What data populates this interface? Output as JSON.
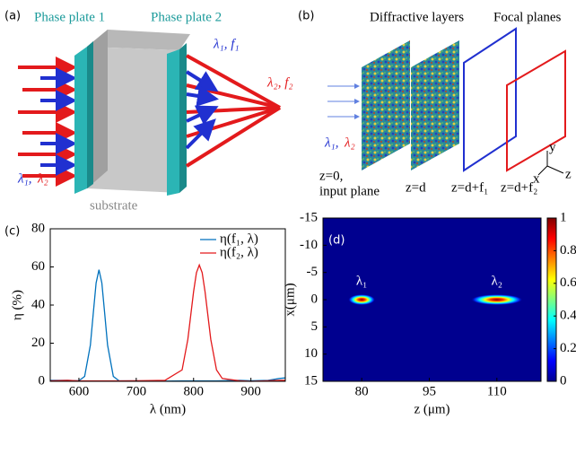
{
  "panel_a": {
    "label": "(a)",
    "plate1": "Phase plate 1",
    "plate2": "Phase plate 2",
    "out1": "λ₁, f₁",
    "out2": "λ₂, f₂",
    "in1": "λ₁,",
    "in2": "λ₂",
    "substrate": "substrate"
  },
  "panel_b": {
    "label": "(b)",
    "layers": "Diffractive layers",
    "planes": "Focal planes",
    "z0": "z=0,",
    "input": "input plane",
    "zd": "z=d",
    "zf1": "z=d+f₁",
    "zf2": "z=d+f₂",
    "in1": "λ₁,",
    "in2": "λ₂",
    "ax_x": "x",
    "ax_y": "y",
    "ax_z": "z"
  },
  "chart_data": [
    {
      "type": "line",
      "panel": "(c)",
      "xlabel": "λ (nm)",
      "ylabel": "η (%)",
      "x": [
        550,
        580,
        600,
        610,
        620,
        625,
        630,
        635,
        640,
        645,
        650,
        660,
        670,
        700,
        750,
        780,
        790,
        800,
        805,
        810,
        815,
        820,
        830,
        840,
        850,
        880,
        900,
        930,
        950,
        960
      ],
      "series": [
        {
          "name": "η(f₁, λ)",
          "color": "#0072bd",
          "values": [
            0.5,
            0.5,
            0.3,
            2.6,
            19,
            35.5,
            51.6,
            58.5,
            51.6,
            35.5,
            19,
            2.6,
            0.3,
            0.2,
            0.1,
            0.2,
            0.2,
            0.2,
            0.2,
            0.2,
            0.2,
            0.2,
            0.2,
            0.2,
            0.3,
            0.5,
            0.3,
            0.5,
            1.5,
            1.8
          ]
        },
        {
          "name": "η(f₂, λ)",
          "color": "#e31a1c",
          "values": [
            0.2,
            0.5,
            0.2,
            0.2,
            0.2,
            0.2,
            0.2,
            0.2,
            0.2,
            0.2,
            0.2,
            0.2,
            0.2,
            0.3,
            0.5,
            6,
            22,
            47,
            57,
            61,
            57,
            47,
            22,
            6,
            1.5,
            0.3,
            0,
            0.3,
            0.5,
            0.5
          ]
        }
      ],
      "xlim": [
        550,
        960
      ],
      "ylim": [
        0,
        80
      ],
      "xticks": [
        600,
        700,
        800,
        900
      ],
      "yticks": [
        0,
        20,
        40,
        60,
        80
      ],
      "legend": "top-right"
    },
    {
      "type": "heatmap",
      "panel": "(d)",
      "xlabel": "z (μm)",
      "ylabel": "x(μm)",
      "xlim": [
        71.4,
        119.8
      ],
      "ylim": [
        -15,
        15
      ],
      "xticks": [
        80,
        95,
        110
      ],
      "yticks": [
        -15,
        -10,
        -5,
        0,
        5,
        10,
        15
      ],
      "y_inverted": true,
      "clim": [
        0,
        1
      ],
      "cticks": [
        0,
        0.2,
        0.4,
        0.6,
        0.8,
        1
      ],
      "spots": [
        {
          "label": "λ₁",
          "z": 80,
          "x": 0,
          "intensity": 1
        },
        {
          "label": "λ₂",
          "z": 110,
          "x": 0,
          "intensity": 0.9
        }
      ]
    }
  ]
}
